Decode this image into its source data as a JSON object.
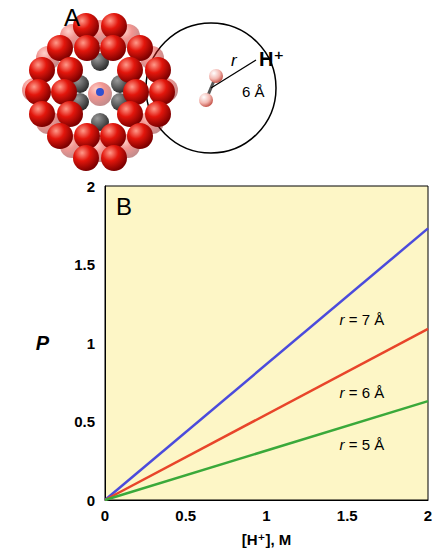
{
  "panel_a": {
    "letter": "A",
    "ion_label": "H⁺",
    "distance_symbol": "r",
    "distance_label": "6 Å"
  },
  "chart_data": {
    "type": "line",
    "panel_letter": "B",
    "x_label": "[H⁺], M",
    "y_label": "P",
    "x": [
      0,
      2
    ],
    "series": [
      {
        "name": "r = 7 Å",
        "color": "#4b4bdc",
        "values": [
          0,
          1.73
        ]
      },
      {
        "name": "r = 6 Å",
        "color": "#e8452a",
        "values": [
          0,
          1.09
        ]
      },
      {
        "name": "r = 5 Å",
        "color": "#3aa93a",
        "values": [
          0,
          0.63
        ]
      }
    ],
    "xlim": [
      0,
      2
    ],
    "ylim": [
      0,
      2
    ],
    "xticks": [
      0,
      0.5,
      1,
      1.5,
      2
    ],
    "yticks": [
      0,
      0.5,
      1,
      1.5,
      2
    ],
    "grid": false
  }
}
